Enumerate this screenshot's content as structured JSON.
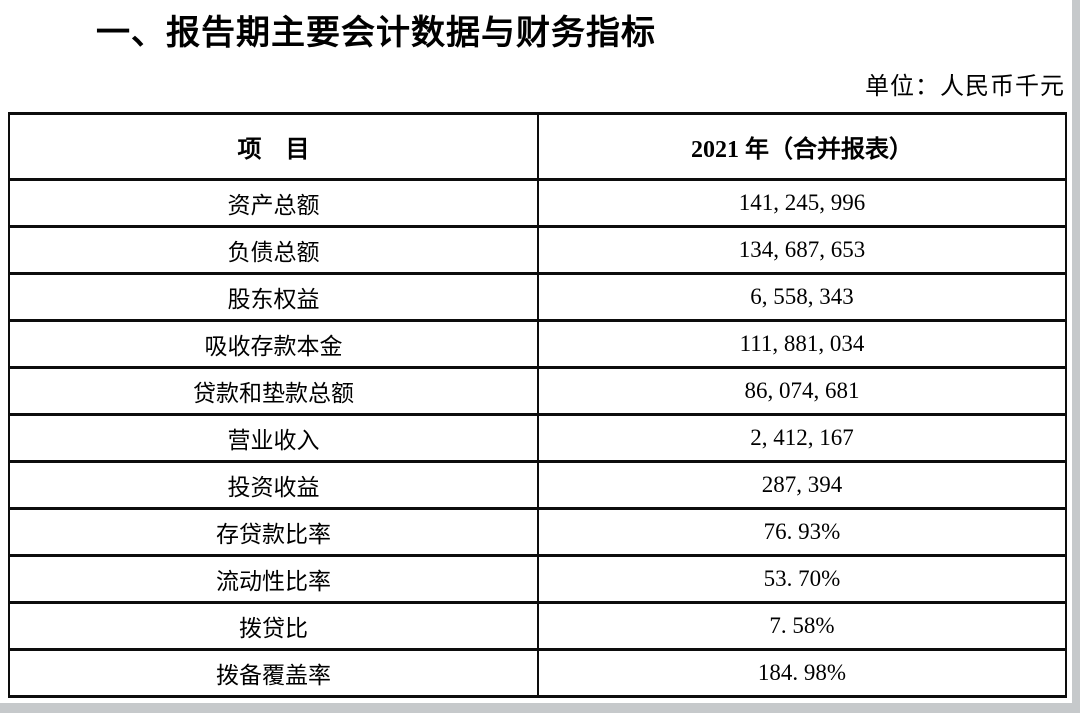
{
  "colors": {
    "text": "#000000",
    "page_background": "#ffffff",
    "table_border": "#0d0d0d",
    "screen_edge": "#c6c9cb"
  },
  "doc": {
    "section_title": "一、报告期主要会计数据与财务指标",
    "unit_label": "单位：人民币千元"
  },
  "table": {
    "headers": {
      "item": "项　目",
      "period": "2021 年（合并报表）"
    },
    "rows": [
      {
        "item": "资产总额",
        "value": "141, 245, 996"
      },
      {
        "item": "负债总额",
        "value": "134, 687, 653"
      },
      {
        "item": "股东权益",
        "value": "6, 558, 343"
      },
      {
        "item": "吸收存款本金",
        "value": "111, 881, 034"
      },
      {
        "item": "贷款和垫款总额",
        "value": "86, 074, 681"
      },
      {
        "item": "营业收入",
        "value": "2, 412, 167"
      },
      {
        "item": "投资收益",
        "value": "287, 394"
      },
      {
        "item": "存贷款比率",
        "value": "76. 93%"
      },
      {
        "item": "流动性比率",
        "value": "53. 70%"
      },
      {
        "item": "拨贷比",
        "value": "7. 58%"
      },
      {
        "item": "拨备覆盖率",
        "value": "184. 98%"
      }
    ]
  }
}
